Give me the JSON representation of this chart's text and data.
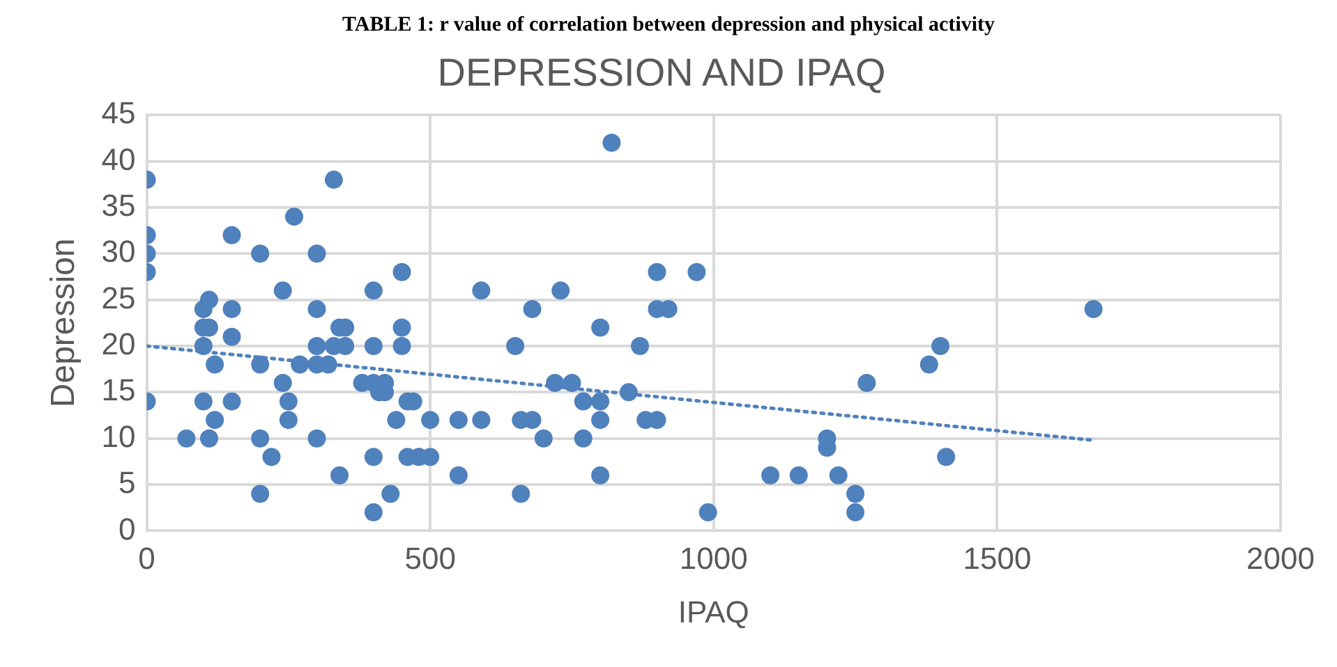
{
  "chart_data": {
    "type": "scatter",
    "title": "DEPRESSION AND IPAQ",
    "xlabel": "IPAQ",
    "ylabel": "Depression",
    "annotations": [
      "TABLE 1: r value of correlation between depression and physical activity"
    ],
    "series": [
      {
        "color": "#4f81bd",
        "x": [
          0,
          0,
          0,
          0,
          0,
          70,
          100,
          110,
          100,
          110,
          100,
          120,
          100,
          120,
          110,
          150,
          150,
          150,
          150,
          200,
          200,
          200,
          200,
          220,
          240,
          240,
          250,
          250,
          260,
          270,
          300,
          300,
          300,
          300,
          300,
          320,
          330,
          330,
          340,
          350,
          350,
          340,
          400,
          400,
          400,
          410,
          420,
          420,
          380,
          400,
          400,
          430,
          450,
          450,
          450,
          440,
          460,
          470,
          480,
          460,
          500,
          500,
          550,
          550,
          590,
          590,
          650,
          660,
          660,
          680,
          680,
          700,
          720,
          730,
          750,
          770,
          770,
          800,
          800,
          800,
          800,
          820,
          850,
          870,
          880,
          900,
          900,
          920,
          900,
          970,
          990,
          1100,
          1150,
          1200,
          1200,
          1220,
          1250,
          1250,
          1270,
          1380,
          1400,
          1410,
          1670
        ],
        "values": [
          38,
          32,
          30,
          28,
          14,
          10,
          24,
          25,
          22,
          22,
          20,
          18,
          14,
          12,
          10,
          32,
          24,
          21,
          14,
          30,
          18,
          10,
          4,
          8,
          26,
          16,
          14,
          12,
          34,
          18,
          30,
          24,
          20,
          18,
          10,
          18,
          38,
          20,
          22,
          22,
          20,
          6,
          26,
          20,
          16,
          15,
          16,
          15,
          16,
          8,
          2,
          4,
          28,
          22,
          20,
          12,
          14,
          14,
          8,
          8,
          12,
          8,
          12,
          6,
          26,
          12,
          20,
          12,
          4,
          24,
          12,
          10,
          16,
          26,
          16,
          10,
          14,
          22,
          14,
          12,
          6,
          42,
          15,
          20,
          12,
          28,
          24,
          24,
          12,
          28,
          2,
          6,
          6,
          10,
          9,
          6,
          4,
          2,
          16,
          18,
          20,
          8,
          24
        ]
      },
      {
        "type": "line",
        "color": "#4f81bd",
        "line_style": "dotted",
        "marker": "none",
        "x": [
          0,
          1670
        ],
        "values": [
          20,
          9.8
        ]
      }
    ],
    "marker": "circle",
    "xlim": [
      0,
      2000
    ],
    "xticks": [
      0,
      500,
      1000,
      1500,
      2000
    ],
    "ylim": [
      0,
      45
    ],
    "yticks": [
      0,
      5,
      10,
      15,
      20,
      25,
      30,
      35,
      40,
      45
    ],
    "grid": true,
    "legend": false
  }
}
